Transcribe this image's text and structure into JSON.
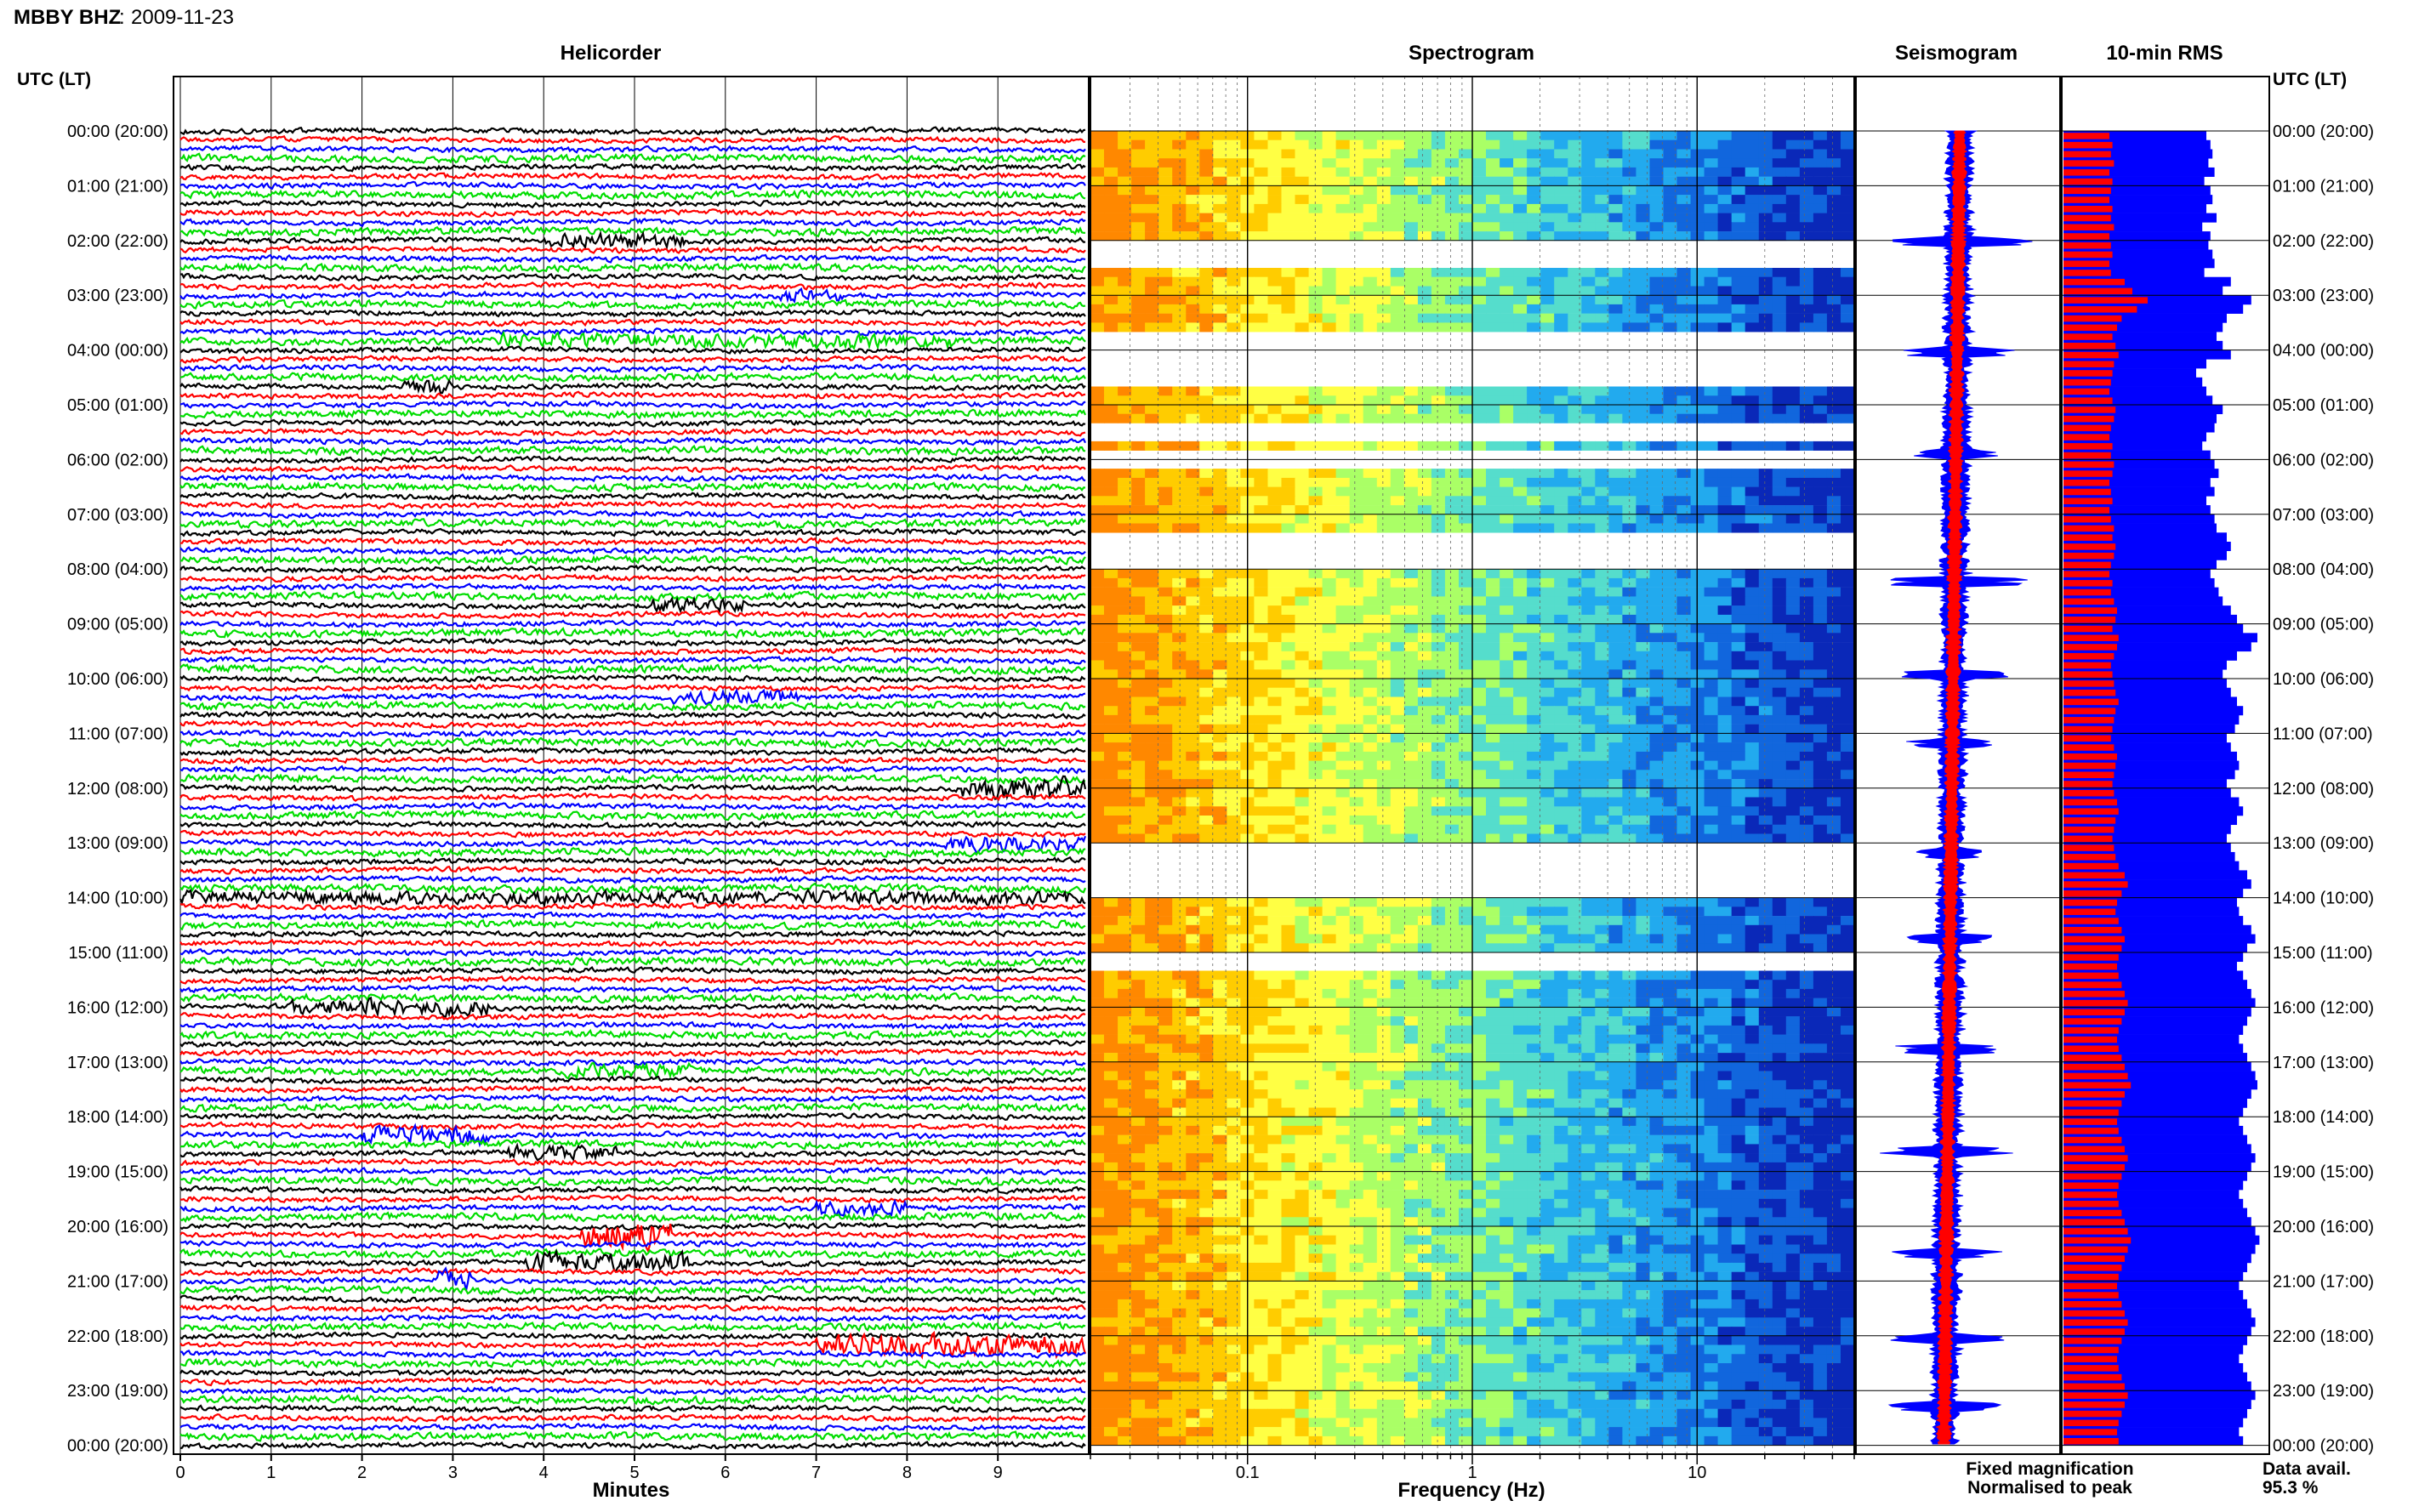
{
  "header": {
    "station_channel": "MBBY BHZ",
    "date": "2009-11-23"
  },
  "legend": {
    "fixed_magnification": "Fixed magnification",
    "normalised_to_peak": "Normalised to peak",
    "fixed_color": "#0000ff",
    "normalised_color": "#ff0000"
  },
  "data_availability": {
    "label": "Data avail.",
    "value_text": "95.3 %",
    "percent": 95.3
  },
  "chart_data": [
    {
      "type": "line",
      "title": "Helicorder",
      "xlabel": "Minutes",
      "ylabel": "",
      "xlim": [
        0,
        10
      ],
      "x_ticks": [
        0,
        1,
        2,
        3,
        4,
        5,
        6,
        7,
        8,
        9
      ],
      "time_axis_title": "UTC (LT)",
      "hour_ticks": [
        "00:00 (20:00)",
        "01:00 (21:00)",
        "02:00 (22:00)",
        "03:00 (23:00)",
        "04:00 (00:00)",
        "05:00 (01:00)",
        "06:00 (02:00)",
        "07:00 (03:00)",
        "08:00 (04:00)",
        "09:00 (05:00)",
        "10:00 (06:00)",
        "11:00 (07:00)",
        "12:00 (08:00)",
        "13:00 (09:00)",
        "14:00 (10:00)",
        "15:00 (11:00)",
        "16:00 (12:00)",
        "17:00 (13:00)",
        "18:00 (14:00)",
        "19:00 (15:00)",
        "20:00 (16:00)",
        "21:00 (17:00)",
        "22:00 (18:00)",
        "23:00 (19:00)",
        "00:00 (20:00)"
      ],
      "trace_colors": [
        "#000000",
        "#ff0000",
        "#0000ff",
        "#00dd00"
      ],
      "traces_per_hour": 6,
      "grid": true
    },
    {
      "type": "heatmap",
      "title": "Spectrogram",
      "xlabel": "Frequency (Hz)",
      "x_scale": "log",
      "xlim": [
        0.02,
        50
      ],
      "x_tick_labels": [
        "0.1",
        "1",
        "10"
      ],
      "x_ticks": [
        0.1,
        1,
        10
      ],
      "colormap": [
        "#ff8800",
        "#ffcc00",
        "#ffff44",
        "#aaff66",
        "#55ddcc",
        "#22aaee",
        "#1166dd",
        "#0a28b8"
      ]
    },
    {
      "type": "line",
      "title": "Seismogram",
      "series": [
        {
          "name": "Fixed magnification",
          "color": "#0000ff"
        },
        {
          "name": "Normalised to peak",
          "color": "#ff0000"
        }
      ]
    },
    {
      "type": "bar",
      "title": "10-min RMS",
      "series": [
        {
          "name": "Fixed magnification",
          "color": "#0000ff"
        },
        {
          "name": "Normalised to peak",
          "color": "#ff0000"
        }
      ],
      "blue_values": [
        0.7,
        0.72,
        0.73,
        0.71,
        0.74,
        0.69,
        0.72,
        0.73,
        0.7,
        0.75,
        0.68,
        0.72,
        0.71,
        0.73,
        0.74,
        0.69,
        0.82,
        0.78,
        0.92,
        0.88,
        0.8,
        0.78,
        0.75,
        0.78,
        0.82,
        0.7,
        0.65,
        0.68,
        0.7,
        0.73,
        0.78,
        0.75,
        0.74,
        0.7,
        0.68,
        0.72,
        0.74,
        0.76,
        0.72,
        0.74,
        0.7,
        0.72,
        0.74,
        0.75,
        0.8,
        0.82,
        0.8,
        0.75,
        0.72,
        0.74,
        0.76,
        0.78,
        0.82,
        0.85,
        0.88,
        0.95,
        0.92,
        0.85,
        0.8,
        0.78,
        0.8,
        0.82,
        0.85,
        0.88,
        0.86,
        0.84,
        0.8,
        0.82,
        0.85,
        0.86,
        0.84,
        0.8,
        0.82,
        0.86,
        0.88,
        0.85,
        0.82,
        0.8,
        0.82,
        0.84,
        0.86,
        0.9,
        0.92,
        0.88,
        0.85,
        0.86,
        0.88,
        0.92,
        0.94,
        0.9,
        0.88,
        0.85,
        0.88,
        0.9,
        0.92,
        0.94,
        0.92,
        0.9,
        0.88,
        0.86,
        0.88,
        0.9,
        0.92,
        0.94,
        0.95,
        0.92,
        0.9,
        0.88,
        0.86,
        0.88,
        0.9,
        0.92,
        0.94,
        0.92,
        0.9,
        0.88,
        0.86,
        0.88,
        0.9,
        0.92,
        0.94,
        0.96,
        0.94,
        0.92,
        0.9,
        0.88,
        0.86,
        0.88,
        0.9,
        0.92,
        0.94,
        0.92,
        0.9,
        0.88,
        0.86,
        0.88,
        0.9,
        0.92,
        0.94,
        0.92,
        0.9,
        0.88,
        0.86,
        0.88
      ],
      "red_values": [
        0.3,
        0.32,
        0.31,
        0.33,
        0.3,
        0.32,
        0.31,
        0.3,
        0.32,
        0.31,
        0.33,
        0.3,
        0.31,
        0.32,
        0.3,
        0.31,
        0.4,
        0.45,
        0.55,
        0.48,
        0.38,
        0.35,
        0.32,
        0.34,
        0.36,
        0.33,
        0.32,
        0.31,
        0.3,
        0.32,
        0.34,
        0.33,
        0.31,
        0.3,
        0.32,
        0.31,
        0.33,
        0.32,
        0.3,
        0.31,
        0.32,
        0.3,
        0.31,
        0.33,
        0.32,
        0.34,
        0.33,
        0.31,
        0.3,
        0.32,
        0.31,
        0.33,
        0.35,
        0.34,
        0.32,
        0.36,
        0.35,
        0.33,
        0.31,
        0.32,
        0.33,
        0.34,
        0.36,
        0.34,
        0.33,
        0.32,
        0.31,
        0.33,
        0.35,
        0.34,
        0.33,
        0.32,
        0.33,
        0.35,
        0.36,
        0.34,
        0.33,
        0.32,
        0.33,
        0.34,
        0.36,
        0.4,
        0.42,
        0.38,
        0.35,
        0.34,
        0.36,
        0.38,
        0.4,
        0.38,
        0.36,
        0.35,
        0.36,
        0.38,
        0.4,
        0.42,
        0.4,
        0.38,
        0.36,
        0.35,
        0.36,
        0.38,
        0.4,
        0.42,
        0.44,
        0.4,
        0.38,
        0.36,
        0.35,
        0.36,
        0.38,
        0.4,
        0.42,
        0.4,
        0.38,
        0.36,
        0.35,
        0.36,
        0.38,
        0.4,
        0.42,
        0.44,
        0.42,
        0.4,
        0.38,
        0.36,
        0.35,
        0.36,
        0.38,
        0.4,
        0.42,
        0.4,
        0.38,
        0.36,
        0.35,
        0.36,
        0.38,
        0.4,
        0.42,
        0.4,
        0.38,
        0.36,
        0.35,
        0.36
      ]
    }
  ]
}
